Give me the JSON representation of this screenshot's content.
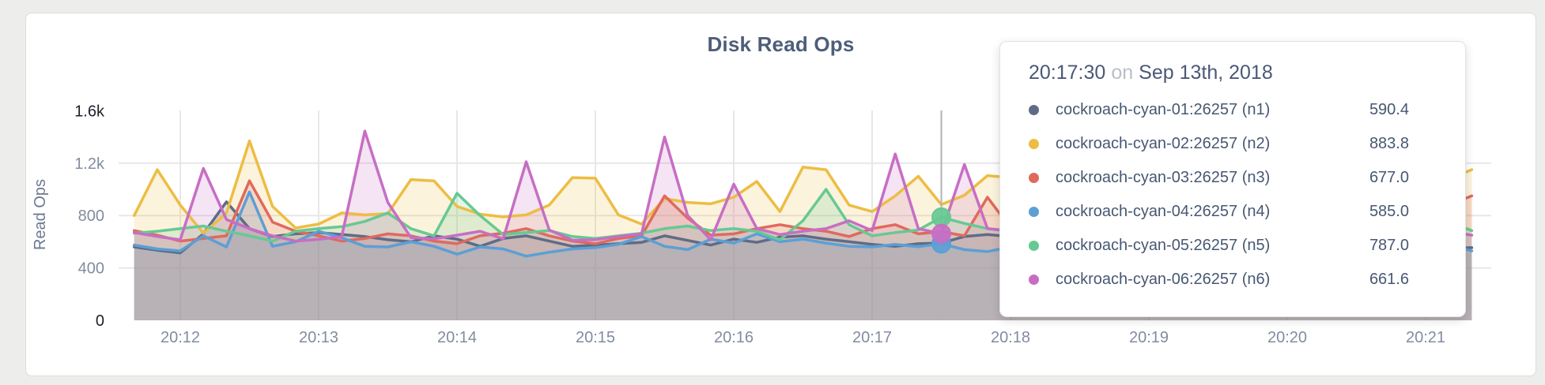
{
  "page": {
    "background_color": "#ededec",
    "card_color": "#ffffff"
  },
  "header": {
    "title": "Disk Read Ops"
  },
  "chart_data": {
    "type": "line",
    "title": "Disk Read Ops",
    "ylabel": "Read Ops",
    "ylim": [
      0,
      1600
    ],
    "grid": true,
    "yticks": [
      {
        "value": 0,
        "label": "0",
        "emphasis": true
      },
      {
        "value": 400,
        "label": "400",
        "emphasis": false
      },
      {
        "value": 800,
        "label": "800",
        "emphasis": false
      },
      {
        "value": 1200,
        "label": "1.2k",
        "emphasis": false
      },
      {
        "value": 1600,
        "label": "1.6k",
        "emphasis": true
      }
    ],
    "xticks": [
      "20:12",
      "20:13",
      "20:14",
      "20:15",
      "20:16",
      "20:17",
      "20:18",
      "20:19",
      "20:20",
      "20:21"
    ],
    "x_start": "20:11:40",
    "x_step_seconds": 10,
    "series": [
      {
        "name": "cockroach-cyan-01:26257 (n1)",
        "short": "n1",
        "color": "#5F6C87",
        "values": [
          560,
          535,
          515,
          660,
          905,
          700,
          640,
          660,
          670,
          655,
          640,
          615,
          600,
          645,
          620,
          565,
          625,
          645,
          605,
          565,
          575,
          585,
          595,
          645,
          610,
          575,
          620,
          595,
          635,
          645,
          620,
          600,
          580,
          565,
          585,
          590.4,
          640,
          655,
          640,
          600,
          580,
          565,
          575,
          590,
          600,
          585,
          565,
          590,
          610,
          585,
          570,
          560,
          580,
          595,
          575,
          555,
          560,
          550,
          555
        ]
      },
      {
        "name": "cockroach-cyan-02:26257 (n2)",
        "short": "n2",
        "color": "#EDBD43",
        "values": [
          800,
          1150,
          880,
          665,
          820,
          1370,
          870,
          705,
          735,
          820,
          805,
          815,
          1075,
          1065,
          870,
          810,
          790,
          805,
          880,
          1090,
          1085,
          805,
          735,
          930,
          900,
          890,
          940,
          1060,
          830,
          1170,
          1150,
          880,
          830,
          950,
          1100,
          883.8,
          955,
          1105,
          1090,
          905,
          825,
          785,
          850,
          905,
          825,
          765,
          805,
          850,
          905,
          825,
          785,
          825,
          865,
          805,
          765,
          850,
          950,
          1080,
          1150
        ]
      },
      {
        "name": "cockroach-cyan-03:26257 (n3)",
        "short": "n3",
        "color": "#E0695E",
        "values": [
          685,
          650,
          605,
          625,
          645,
          1065,
          750,
          680,
          645,
          605,
          625,
          660,
          645,
          605,
          585,
          645,
          665,
          700,
          645,
          605,
          585,
          625,
          645,
          950,
          780,
          650,
          660,
          700,
          730,
          700,
          680,
          640,
          700,
          730,
          660,
          677,
          645,
          940,
          705,
          650,
          625,
          605,
          645,
          665,
          625,
          605,
          585,
          625,
          645,
          605,
          625,
          645,
          605,
          585,
          605,
          645,
          700,
          880,
          950
        ]
      },
      {
        "name": "cockroach-cyan-04:26257 (n4)",
        "short": "n4",
        "color": "#5B9FD6",
        "values": [
          575,
          545,
          530,
          645,
          560,
          980,
          565,
          600,
          680,
          630,
          565,
          560,
          600,
          565,
          505,
          560,
          545,
          490,
          520,
          545,
          555,
          580,
          640,
          565,
          540,
          620,
          590,
          660,
          600,
          620,
          590,
          565,
          560,
          580,
          562,
          585,
          540,
          525,
          560,
          580,
          560,
          540,
          560,
          580,
          560,
          540,
          560,
          580,
          600,
          570,
          550,
          570,
          590,
          560,
          540,
          800,
          700,
          580,
          530
        ]
      },
      {
        "name": "cockroach-cyan-05:26257 (n5)",
        "short": "n5",
        "color": "#66C993",
        "values": [
          665,
          680,
          700,
          720,
          680,
          645,
          605,
          680,
          700,
          715,
          755,
          820,
          700,
          645,
          970,
          800,
          655,
          670,
          685,
          640,
          625,
          645,
          665,
          700,
          720,
          685,
          700,
          680,
          615,
          760,
          1000,
          730,
          645,
          670,
          690,
          787,
          740,
          700,
          685,
          665,
          700,
          720,
          685,
          665,
          685,
          700,
          720,
          685,
          665,
          700,
          685,
          665,
          700,
          720,
          685,
          665,
          700,
          750,
          685
        ]
      },
      {
        "name": "cockroach-cyan-06:26257 (n6)",
        "short": "n6",
        "color": "#C76EC4",
        "values": [
          670,
          640,
          615,
          1160,
          770,
          700,
          645,
          605,
          618,
          640,
          1445,
          900,
          632,
          622,
          650,
          680,
          622,
          1210,
          690,
          612,
          615,
          640,
          660,
          1400,
          800,
          615,
          1040,
          700,
          655,
          680,
          700,
          760,
          685,
          1270,
          700,
          661.6,
          1190,
          700,
          680,
          1160,
          900,
          700,
          660,
          640,
          660,
          680,
          660,
          640,
          660,
          680,
          660,
          640,
          660,
          680,
          660,
          640,
          660,
          680,
          650
        ]
      }
    ]
  },
  "hover": {
    "index": 35,
    "time": "20:17:30",
    "highlight_series": [
      "n4",
      "n5",
      "n6"
    ]
  },
  "tooltip": {
    "time": "20:17:30",
    "conjunction": "on",
    "date": "Sep 13th, 2018",
    "rows": [
      {
        "label": "cockroach-cyan-01:26257 (n1)",
        "value": "590.4",
        "color": "#5F6C87"
      },
      {
        "label": "cockroach-cyan-02:26257 (n2)",
        "value": "883.8",
        "color": "#EDBD43"
      },
      {
        "label": "cockroach-cyan-03:26257 (n3)",
        "value": "677.0",
        "color": "#E0695E"
      },
      {
        "label": "cockroach-cyan-04:26257 (n4)",
        "value": "585.0",
        "color": "#5B9FD6"
      },
      {
        "label": "cockroach-cyan-05:26257 (n5)",
        "value": "787.0",
        "color": "#66C993"
      },
      {
        "label": "cockroach-cyan-06:26257 (n6)",
        "value": "661.6",
        "color": "#C76EC4"
      }
    ]
  },
  "style": {
    "grid_color": "#e7e7e7",
    "hover_line_color": "#b3b3b3",
    "tick_color": "#828ca0",
    "tick_emphasis_color": "#1b202b",
    "axis_label_color": "#6d7890"
  }
}
